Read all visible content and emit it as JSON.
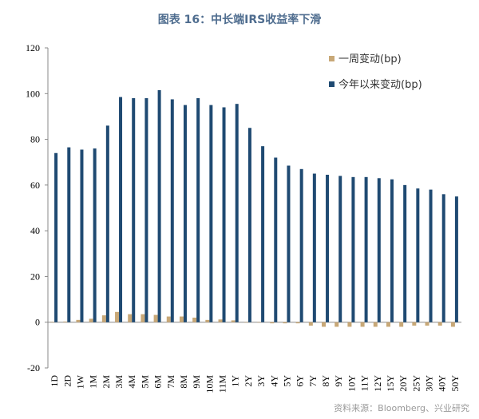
{
  "title": "图表 16：中长端IRS收益率下滑",
  "source": "资料来源：Bloomberg、兴业研究",
  "chart_data": {
    "type": "bar",
    "title": "图表 16：中长端IRS收益率下滑",
    "xlabel": "",
    "ylabel": "",
    "ylim": [
      -20,
      120
    ],
    "yticks": [
      -20,
      0,
      20,
      40,
      60,
      80,
      100,
      120
    ],
    "legend_position": "top-right",
    "categories": [
      "1D",
      "2D",
      "1W",
      "1M",
      "2M",
      "3M",
      "4M",
      "5M",
      "6M",
      "7M",
      "8M",
      "9M",
      "10M",
      "11M",
      "1Y",
      "2Y",
      "3Y",
      "4Y",
      "5Y",
      "6Y",
      "7Y",
      "8Y",
      "9Y",
      "10Y",
      "11Y",
      "12Y",
      "15Y",
      "20Y",
      "25Y",
      "30Y",
      "40Y",
      "50Y"
    ],
    "series": [
      {
        "name": "一周变动(bp)",
        "color": "#c8a877",
        "values": [
          0.2,
          0.3,
          1,
          1.5,
          3,
          4.5,
          3.5,
          3.5,
          3.2,
          2.5,
          2.5,
          2,
          1,
          1.2,
          0.8,
          0,
          0,
          -0.5,
          -0.5,
          -0.5,
          -1.5,
          -2,
          -2,
          -2,
          -2,
          -2,
          -2,
          -2,
          -1.5,
          -1.5,
          -1.5,
          -2
        ]
      },
      {
        "name": "今年以来变动(bp)",
        "color": "#1f4a72",
        "values": [
          74,
          76.5,
          75.5,
          76,
          86,
          98.5,
          98,
          98,
          101.5,
          97.5,
          95,
          98,
          95,
          94,
          95.5,
          85,
          77,
          72,
          68.5,
          67,
          65,
          64.5,
          64,
          63.5,
          63.5,
          63,
          62.5,
          60,
          58.5,
          58,
          56,
          55
        ]
      }
    ]
  }
}
